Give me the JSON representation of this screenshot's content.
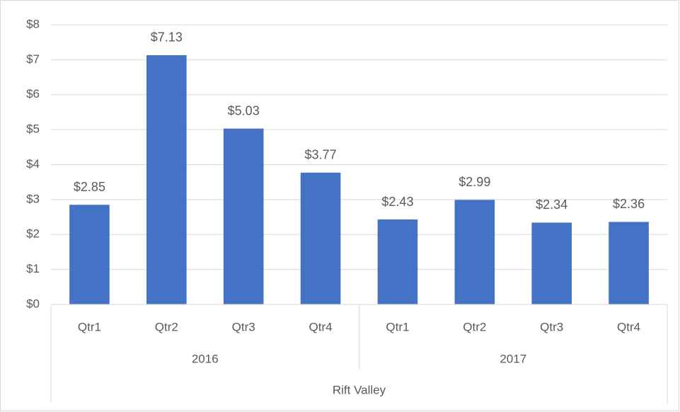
{
  "chart_data": {
    "type": "bar",
    "color": "#4472c4",
    "grid": true,
    "ylim": [
      0,
      8
    ],
    "yticks": [
      {
        "value": 0,
        "label": "$0"
      },
      {
        "value": 1,
        "label": "$1"
      },
      {
        "value": 2,
        "label": "$2"
      },
      {
        "value": 3,
        "label": "$3"
      },
      {
        "value": 4,
        "label": "$4"
      },
      {
        "value": 5,
        "label": "$5"
      },
      {
        "value": 6,
        "label": "$6"
      },
      {
        "value": 7,
        "label": "$7"
      },
      {
        "value": 8,
        "label": "$8"
      }
    ],
    "outer_label": "Rift Valley",
    "groups": [
      {
        "label": "2016",
        "categories": [
          "Qtr1",
          "Qtr2",
          "Qtr3",
          "Qtr4"
        ],
        "values": [
          2.85,
          7.13,
          5.03,
          3.77
        ],
        "value_labels": [
          "$2.85",
          "$7.13",
          "$5.03",
          "$3.77"
        ]
      },
      {
        "label": "2017",
        "categories": [
          "Qtr1",
          "Qtr2",
          "Qtr3",
          "Qtr4"
        ],
        "values": [
          2.43,
          2.99,
          2.34,
          2.36
        ],
        "value_labels": [
          "$2.43",
          "$2.99",
          "$2.34",
          "$2.36"
        ]
      }
    ]
  }
}
